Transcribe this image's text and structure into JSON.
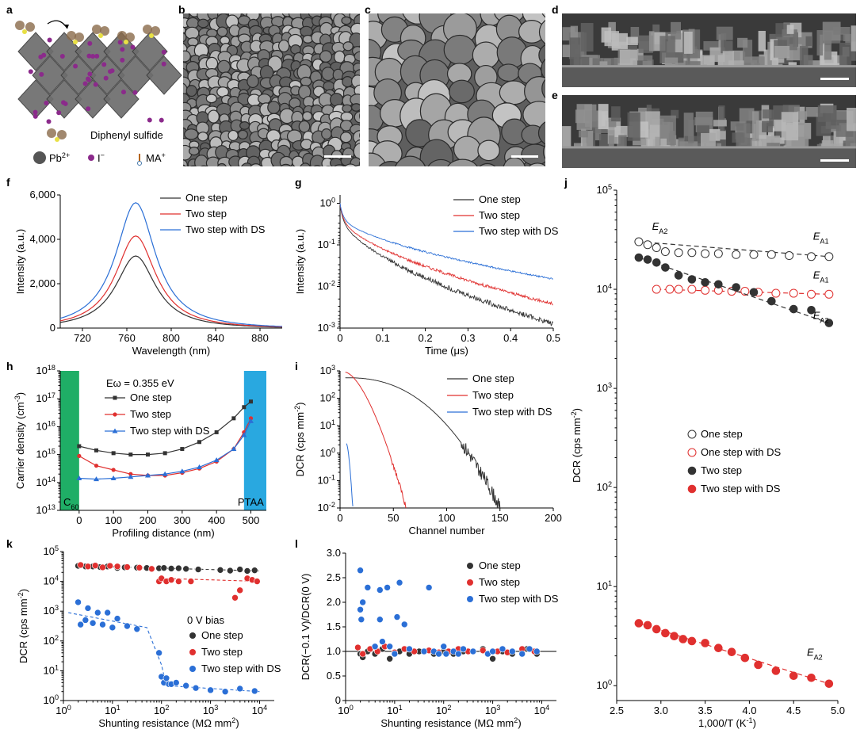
{
  "panel_labels": [
    "a",
    "b",
    "c",
    "d",
    "e",
    "f",
    "g",
    "h",
    "i",
    "j",
    "k",
    "l"
  ],
  "panel_a": {
    "molecule_label": "Diphenyl sulfide",
    "legend": [
      {
        "name": "Pb",
        "sup": "2+",
        "color": "#555555",
        "icon": "lead-atom-icon"
      },
      {
        "name": "I",
        "sup": "−",
        "color": "#8b2a8b",
        "icon": "iodine-atom-icon"
      },
      {
        "name": "MA",
        "sup": "+",
        "color": "#b5651d",
        "icon": "methylammonium-icon"
      }
    ]
  },
  "colors": {
    "black": "#333333",
    "red": "#e0302f",
    "blue": "#2b6fd6",
    "green": "#1fae66",
    "cyan": "#29a8e0"
  },
  "chart_data": [
    {
      "id": "f",
      "type": "line",
      "xlabel": "Wavelength (nm)",
      "ylabel": "Intensity (a.u.)",
      "xlim": [
        700,
        900
      ],
      "ylim": [
        0,
        6000
      ],
      "xticks": [
        720,
        760,
        800,
        840,
        880
      ],
      "yticks": [
        0,
        2000,
        4000,
        6000
      ],
      "ytick_labels": [
        "0",
        "2,000",
        "4,000",
        "6,000"
      ],
      "legend": "top-right",
      "series": [
        {
          "name": "One step",
          "color": "black",
          "peak": 768,
          "amp": 3250,
          "width": 22
        },
        {
          "name": "Two step",
          "color": "red",
          "peak": 768,
          "amp": 4150,
          "width": 22
        },
        {
          "name": "Two step with DS",
          "color": "blue",
          "peak": 768,
          "amp": 5650,
          "width": 22
        }
      ]
    },
    {
      "id": "g",
      "type": "line",
      "xlabel": "Time (μs)",
      "ylabel": "Intensity (a.u.)",
      "xlim": [
        0,
        0.5
      ],
      "ylim": [
        -3,
        0.2
      ],
      "yscale": "log",
      "xticks": [
        0,
        0.1,
        0.2,
        0.3,
        0.4,
        0.5
      ],
      "xtick_labels": [
        "0",
        "0.1",
        "0.2",
        "0.3",
        "0.4",
        "0.5"
      ],
      "yticks": [
        0,
        -1,
        -2,
        -3
      ],
      "ytick_labels": [
        "10^0",
        "10^-1",
        "10^-2",
        "10^-3"
      ],
      "legend": "top-right",
      "series": [
        {
          "name": "One step",
          "color": "black",
          "end_log": -2.9,
          "noise": 0.12
        },
        {
          "name": "Two step",
          "color": "red",
          "end_log": -2.42,
          "noise": 0.07
        },
        {
          "name": "Two step with DS",
          "color": "blue",
          "end_log": -1.82,
          "noise": 0.04
        }
      ]
    },
    {
      "id": "h",
      "type": "line",
      "xlabel": "Profiling distance (nm)",
      "ylabel": "Carrier density (cm^-3)",
      "xlim": [
        -55,
        545
      ],
      "ylim": [
        13,
        18
      ],
      "yscale": "log",
      "xticks": [
        0,
        100,
        200,
        300,
        400,
        500
      ],
      "yticks": [
        13,
        14,
        15,
        16,
        17,
        18
      ],
      "ytick_labels": [
        "10^13",
        "10^14",
        "10^15",
        "10^16",
        "10^17",
        "10^18"
      ],
      "annotation": {
        "text": "Eω = 0.355 eV"
      },
      "regions": [
        {
          "label": "C60",
          "from": -55,
          "to": 0,
          "color": "green"
        },
        {
          "label": "PTAA",
          "from": 480,
          "to": 545,
          "color": "cyan"
        }
      ],
      "legend": "top-left",
      "series": [
        {
          "name": "One step",
          "color": "black",
          "marker": "square",
          "x": [
            0,
            50,
            100,
            150,
            200,
            250,
            300,
            350,
            400,
            450,
            480,
            500
          ],
          "y": [
            15.3,
            15.15,
            15.05,
            15.0,
            15.0,
            15.05,
            15.2,
            15.45,
            15.8,
            16.3,
            16.7,
            16.9
          ]
        },
        {
          "name": "Two step",
          "color": "red",
          "marker": "circle",
          "x": [
            0,
            50,
            100,
            150,
            200,
            250,
            300,
            350,
            400,
            450,
            480,
            500
          ],
          "y": [
            14.95,
            14.6,
            14.45,
            14.3,
            14.25,
            14.25,
            14.35,
            14.5,
            14.75,
            15.2,
            15.8,
            16.3
          ]
        },
        {
          "name": "Two step with DS",
          "color": "blue",
          "marker": "triangle",
          "x": [
            0,
            50,
            100,
            150,
            200,
            250,
            300,
            350,
            400,
            450,
            480,
            500
          ],
          "y": [
            14.15,
            14.12,
            14.15,
            14.2,
            14.25,
            14.3,
            14.4,
            14.55,
            14.8,
            15.2,
            15.7,
            16.2
          ]
        }
      ]
    },
    {
      "id": "i",
      "type": "line",
      "xlabel": "Channel number",
      "ylabel": "DCR (cps mm^-2)",
      "xlim": [
        0,
        200
      ],
      "ylim": [
        -2,
        3
      ],
      "yscale": "log",
      "xticks": [
        0,
        50,
        100,
        150,
        200
      ],
      "yticks": [
        -2,
        -1,
        0,
        1,
        2,
        3
      ],
      "ytick_labels": [
        "10^-2",
        "10^-1",
        "10^0",
        "10^1",
        "10^2",
        "10^3"
      ],
      "legend": "top-right",
      "series": [
        {
          "name": "One step",
          "color": "black",
          "x0": 5,
          "x1": 150,
          "start_log": 2.75
        },
        {
          "name": "Two step",
          "color": "red",
          "x0": 5,
          "x1": 62,
          "start_log": 2.95
        },
        {
          "name": "Two step with DS",
          "color": "blue",
          "x0": 6,
          "x1": 12,
          "start_log": 0.35
        }
      ]
    },
    {
      "id": "j",
      "type": "scatter",
      "xlabel": "1,000/T (K^-1)",
      "ylabel": "DCR (cps mm^-2)",
      "xlim": [
        2.5,
        5.0
      ],
      "ylim": [
        -0.15,
        5
      ],
      "yscale": "log",
      "xticks": [
        2.5,
        3.0,
        3.5,
        4.0,
        4.5,
        5.0
      ],
      "xtick_labels": [
        "2.5",
        "3.0",
        "3.5",
        "4.0",
        "4.5",
        "5.0"
      ],
      "yticks": [
        0,
        1,
        2,
        3,
        4,
        5
      ],
      "ytick_labels": [
        "10^0",
        "10^1",
        "10^2",
        "10^3",
        "10^4",
        "10^5"
      ],
      "legend": "center",
      "annotations": [
        {
          "text": "EA2",
          "x": 2.9,
          "y": 4.6
        },
        {
          "text": "EA1",
          "x": 4.72,
          "y": 4.5
        },
        {
          "text": "EA1",
          "x": 4.72,
          "y": 4.11
        },
        {
          "text": "EA2",
          "x": 4.72,
          "y": 3.7
        },
        {
          "text": "EA2",
          "x": 4.65,
          "y": 0.3
        }
      ],
      "series": [
        {
          "name": "One step",
          "color": "black",
          "style": "open",
          "x": [
            2.75,
            2.85,
            2.95,
            3.05,
            3.2,
            3.35,
            3.5,
            3.65,
            3.85,
            4.05,
            4.25,
            4.45,
            4.7,
            4.9
          ],
          "y": [
            4.48,
            4.45,
            4.42,
            4.38,
            4.37,
            4.37,
            4.36,
            4.36,
            4.35,
            4.35,
            4.35,
            4.34,
            4.33,
            4.33
          ]
        },
        {
          "name": "One step with DS",
          "color": "red",
          "style": "open",
          "x": [
            2.95,
            3.1,
            3.2,
            3.35,
            3.5,
            3.65,
            3.8,
            3.95,
            4.1,
            4.3,
            4.5,
            4.7,
            4.9
          ],
          "y": [
            4.0,
            4.0,
            4.0,
            4.0,
            3.99,
            3.99,
            3.98,
            3.98,
            3.97,
            3.96,
            3.96,
            3.95,
            3.95
          ]
        },
        {
          "name": "Two step",
          "color": "black",
          "style": "filled",
          "x": [
            2.75,
            2.85,
            2.95,
            3.05,
            3.2,
            3.35,
            3.5,
            3.65,
            3.85,
            4.05,
            4.25,
            4.5,
            4.7,
            4.9
          ],
          "y": [
            4.32,
            4.3,
            4.27,
            4.22,
            4.14,
            4.1,
            4.07,
            4.05,
            4.02,
            3.97,
            3.88,
            3.8,
            3.79,
            3.66
          ]
        },
        {
          "name": "Two step with DS",
          "color": "red",
          "style": "filled",
          "x": [
            2.75,
            2.85,
            2.95,
            3.05,
            3.15,
            3.25,
            3.35,
            3.5,
            3.65,
            3.8,
            3.95,
            4.1,
            4.3,
            4.5,
            4.7,
            4.9
          ],
          "y": [
            0.63,
            0.61,
            0.57,
            0.53,
            0.5,
            0.47,
            0.45,
            0.43,
            0.38,
            0.34,
            0.28,
            0.21,
            0.15,
            0.1,
            0.08,
            0.02
          ]
        }
      ]
    },
    {
      "id": "k",
      "type": "scatter",
      "xlabel": "Shunting resistance (MΩ mm^2)",
      "ylabel": "DCR (cps mm^-2)",
      "xlim": [
        0,
        4.3
      ],
      "ylim": [
        0,
        5
      ],
      "xscale": "log",
      "yscale": "log",
      "xticks": [
        0,
        1,
        2,
        3,
        4
      ],
      "xtick_labels": [
        "10^0",
        "10^1",
        "10^2",
        "10^3",
        "10^4"
      ],
      "yticks": [
        0,
        1,
        2,
        3,
        4,
        5
      ],
      "ytick_labels": [
        "10^0",
        "10^1",
        "10^2",
        "10^3",
        "10^4",
        "10^5"
      ],
      "legend_title": "0 V bias",
      "legend": "bottom-right",
      "series": [
        {
          "name": "One step",
          "color": "black",
          "x": [
            0.3,
            0.45,
            0.6,
            0.75,
            0.9,
            1.1,
            1.25,
            1.5,
            1.7,
            1.95,
            2.05,
            2.2,
            2.35,
            2.5,
            2.75,
            3.2,
            3.4,
            3.6,
            3.75,
            3.9
          ],
          "y": [
            4.52,
            4.5,
            4.5,
            4.48,
            4.5,
            4.45,
            4.47,
            4.46,
            4.45,
            4.44,
            4.45,
            4.43,
            4.44,
            4.42,
            4.4,
            4.38,
            4.36,
            4.4,
            4.35,
            4.37
          ]
        },
        {
          "name": "Two step",
          "color": "red",
          "x": [
            0.35,
            0.5,
            0.65,
            0.8,
            0.95,
            1.1,
            1.3,
            1.55,
            1.8,
            1.95,
            2.0,
            2.1,
            2.2,
            2.35,
            2.6,
            3.5,
            3.6,
            3.75,
            3.85,
            3.95
          ],
          "y": [
            4.55,
            4.5,
            4.53,
            4.47,
            4.52,
            4.5,
            4.48,
            4.46,
            4.42,
            4.0,
            4.1,
            4.0,
            4.05,
            4.0,
            4.0,
            3.45,
            3.7,
            4.1,
            4.05,
            4.0
          ]
        },
        {
          "name": "Two step with DS",
          "color": "blue",
          "x": [
            0.3,
            0.35,
            0.45,
            0.5,
            0.6,
            0.7,
            0.8,
            0.9,
            1.0,
            1.1,
            1.3,
            1.5,
            1.95,
            2.0,
            2.05,
            2.1,
            2.15,
            2.2,
            2.3,
            2.5,
            2.7,
            3.0,
            3.3,
            3.6,
            3.9
          ],
          "y": [
            3.3,
            2.55,
            2.7,
            3.1,
            2.6,
            2.95,
            2.55,
            2.95,
            2.45,
            2.75,
            2.5,
            2.4,
            1.6,
            0.8,
            0.6,
            0.75,
            0.55,
            0.55,
            0.6,
            0.5,
            0.42,
            0.35,
            0.3,
            0.4,
            0.32
          ]
        }
      ],
      "fit_lines": [
        {
          "color": "black",
          "x": [
            0.3,
            4.0
          ],
          "y": [
            4.52,
            4.35
          ]
        },
        {
          "color": "red",
          "x": [
            2.0,
            4.0
          ],
          "y": [
            4.1,
            4.0
          ]
        },
        {
          "color": "blue",
          "x": [
            0.1,
            1.7,
            2.0,
            2.1,
            4.0
          ],
          "y": [
            2.95,
            2.45,
            1.2,
            0.5,
            0.3
          ]
        }
      ]
    },
    {
      "id": "l",
      "type": "scatter",
      "xlabel": "Shunting resistance (MΩ mm^2)",
      "ylabel": "DCR(−0.1 V)/DCR(0 V)",
      "xlim": [
        0,
        4.3
      ],
      "ylim": [
        0,
        3.0
      ],
      "xscale": "log",
      "xticks": [
        0,
        1,
        2,
        3,
        4
      ],
      "xtick_labels": [
        "10^0",
        "10^1",
        "10^2",
        "10^3",
        "10^4"
      ],
      "yticks": [
        0,
        0.5,
        1.0,
        1.5,
        2.0,
        2.5,
        3.0
      ],
      "ytick_labels": [
        "0",
        "0.5",
        "1.0",
        "1.5",
        "2.0",
        "2.5",
        "3.0"
      ],
      "reference_line": 1.0,
      "legend": "top-right",
      "series": [
        {
          "name": "One step",
          "color": "black",
          "x": [
            0.3,
            0.35,
            0.45,
            0.6,
            0.75,
            0.9,
            1.1,
            1.3,
            1.5,
            1.8,
            2.0,
            2.2,
            2.4,
            2.8,
            3.0,
            3.2,
            3.4,
            3.7,
            3.9
          ],
          "y": [
            0.95,
            0.88,
            1.0,
            0.95,
            1.05,
            0.85,
            1.0,
            0.95,
            1.0,
            0.95,
            1.0,
            0.95,
            1.0,
            1.05,
            0.85,
            1.0,
            0.95,
            1.05,
            0.95
          ]
        },
        {
          "name": "Two step",
          "color": "red",
          "x": [
            0.25,
            0.35,
            0.5,
            0.65,
            0.8,
            1.0,
            1.2,
            1.4,
            1.7,
            1.9,
            2.1,
            2.3,
            2.5,
            2.8,
            3.1,
            3.3,
            3.6,
            3.85
          ],
          "y": [
            1.08,
            0.95,
            1.05,
            1.0,
            1.1,
            0.98,
            1.05,
            1.0,
            1.02,
            0.98,
            1.0,
            1.05,
            1.0,
            1.02,
            1.0,
            0.98,
            1.05,
            1.0
          ]
        },
        {
          "name": "Two step with DS",
          "color": "blue",
          "x": [
            0.3,
            0.3,
            0.32,
            0.35,
            0.45,
            0.7,
            0.7,
            0.75,
            0.85,
            1.05,
            1.1,
            1.2,
            1.7,
            0.6,
            0.9,
            1.0,
            1.3,
            1.6,
            1.8,
            1.9,
            2.0,
            2.05,
            2.2,
            2.3,
            2.4,
            2.6,
            2.9,
            3.0,
            3.2,
            3.4,
            3.6,
            3.75,
            3.9
          ],
          "y": [
            2.65,
            1.85,
            1.65,
            2.0,
            2.3,
            2.25,
            1.65,
            1.2,
            2.3,
            1.7,
            2.4,
            1.55,
            2.3,
            1.1,
            1.1,
            0.95,
            1.05,
            1.0,
            1.0,
            0.95,
            1.1,
            0.95,
            1.0,
            0.95,
            1.05,
            1.0,
            0.95,
            1.0,
            1.05,
            1.0,
            0.95,
            1.05,
            1.0
          ]
        }
      ]
    }
  ]
}
